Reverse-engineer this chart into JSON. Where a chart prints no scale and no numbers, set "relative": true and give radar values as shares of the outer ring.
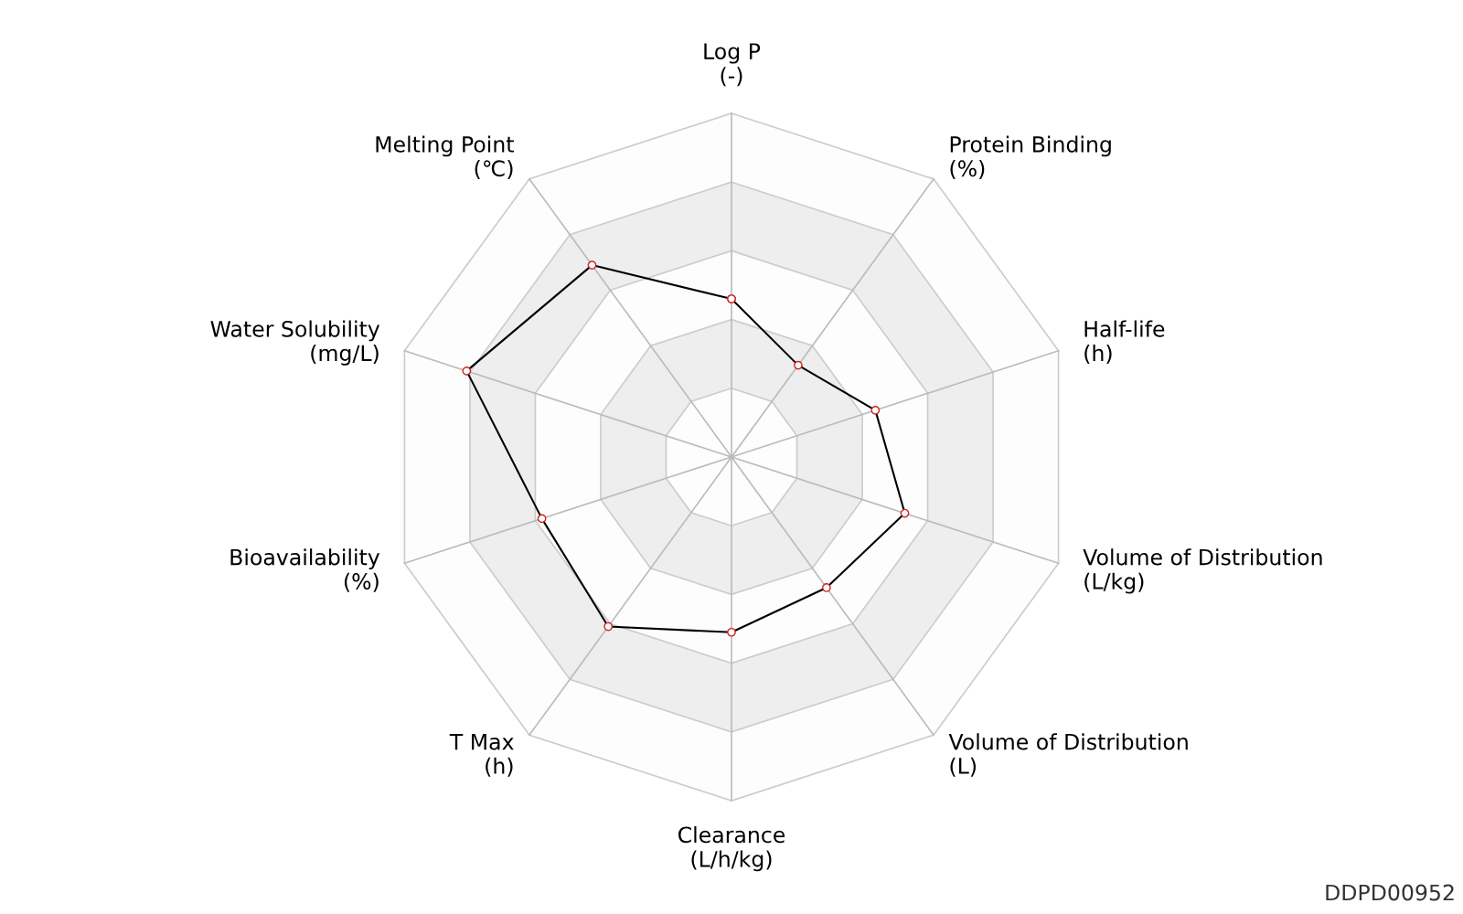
{
  "chart_data": {
    "type": "radar",
    "relative": true,
    "grid": true,
    "marker": "circle",
    "categories": [
      "Log P\n(-)",
      "Protein Binding\n(%)",
      "Half-life\n(h)",
      "Volume of Distribution\n(L/kg)",
      "Volume of Distribution\n(L)",
      "Clearance\n(L/h/kg)",
      "T Max\n(h)",
      "Bioavailability\n(%)",
      "Water Solubility\n(mg/L)",
      "Melting Point\n(℃)"
    ],
    "series": [
      {
        "color": "#000000",
        "values": [
          0.46,
          0.33,
          0.44,
          0.53,
          0.47,
          0.51,
          0.61,
          0.58,
          0.81,
          0.69
        ]
      }
    ],
    "annotations": [
      "DDPD00952"
    ]
  }
}
